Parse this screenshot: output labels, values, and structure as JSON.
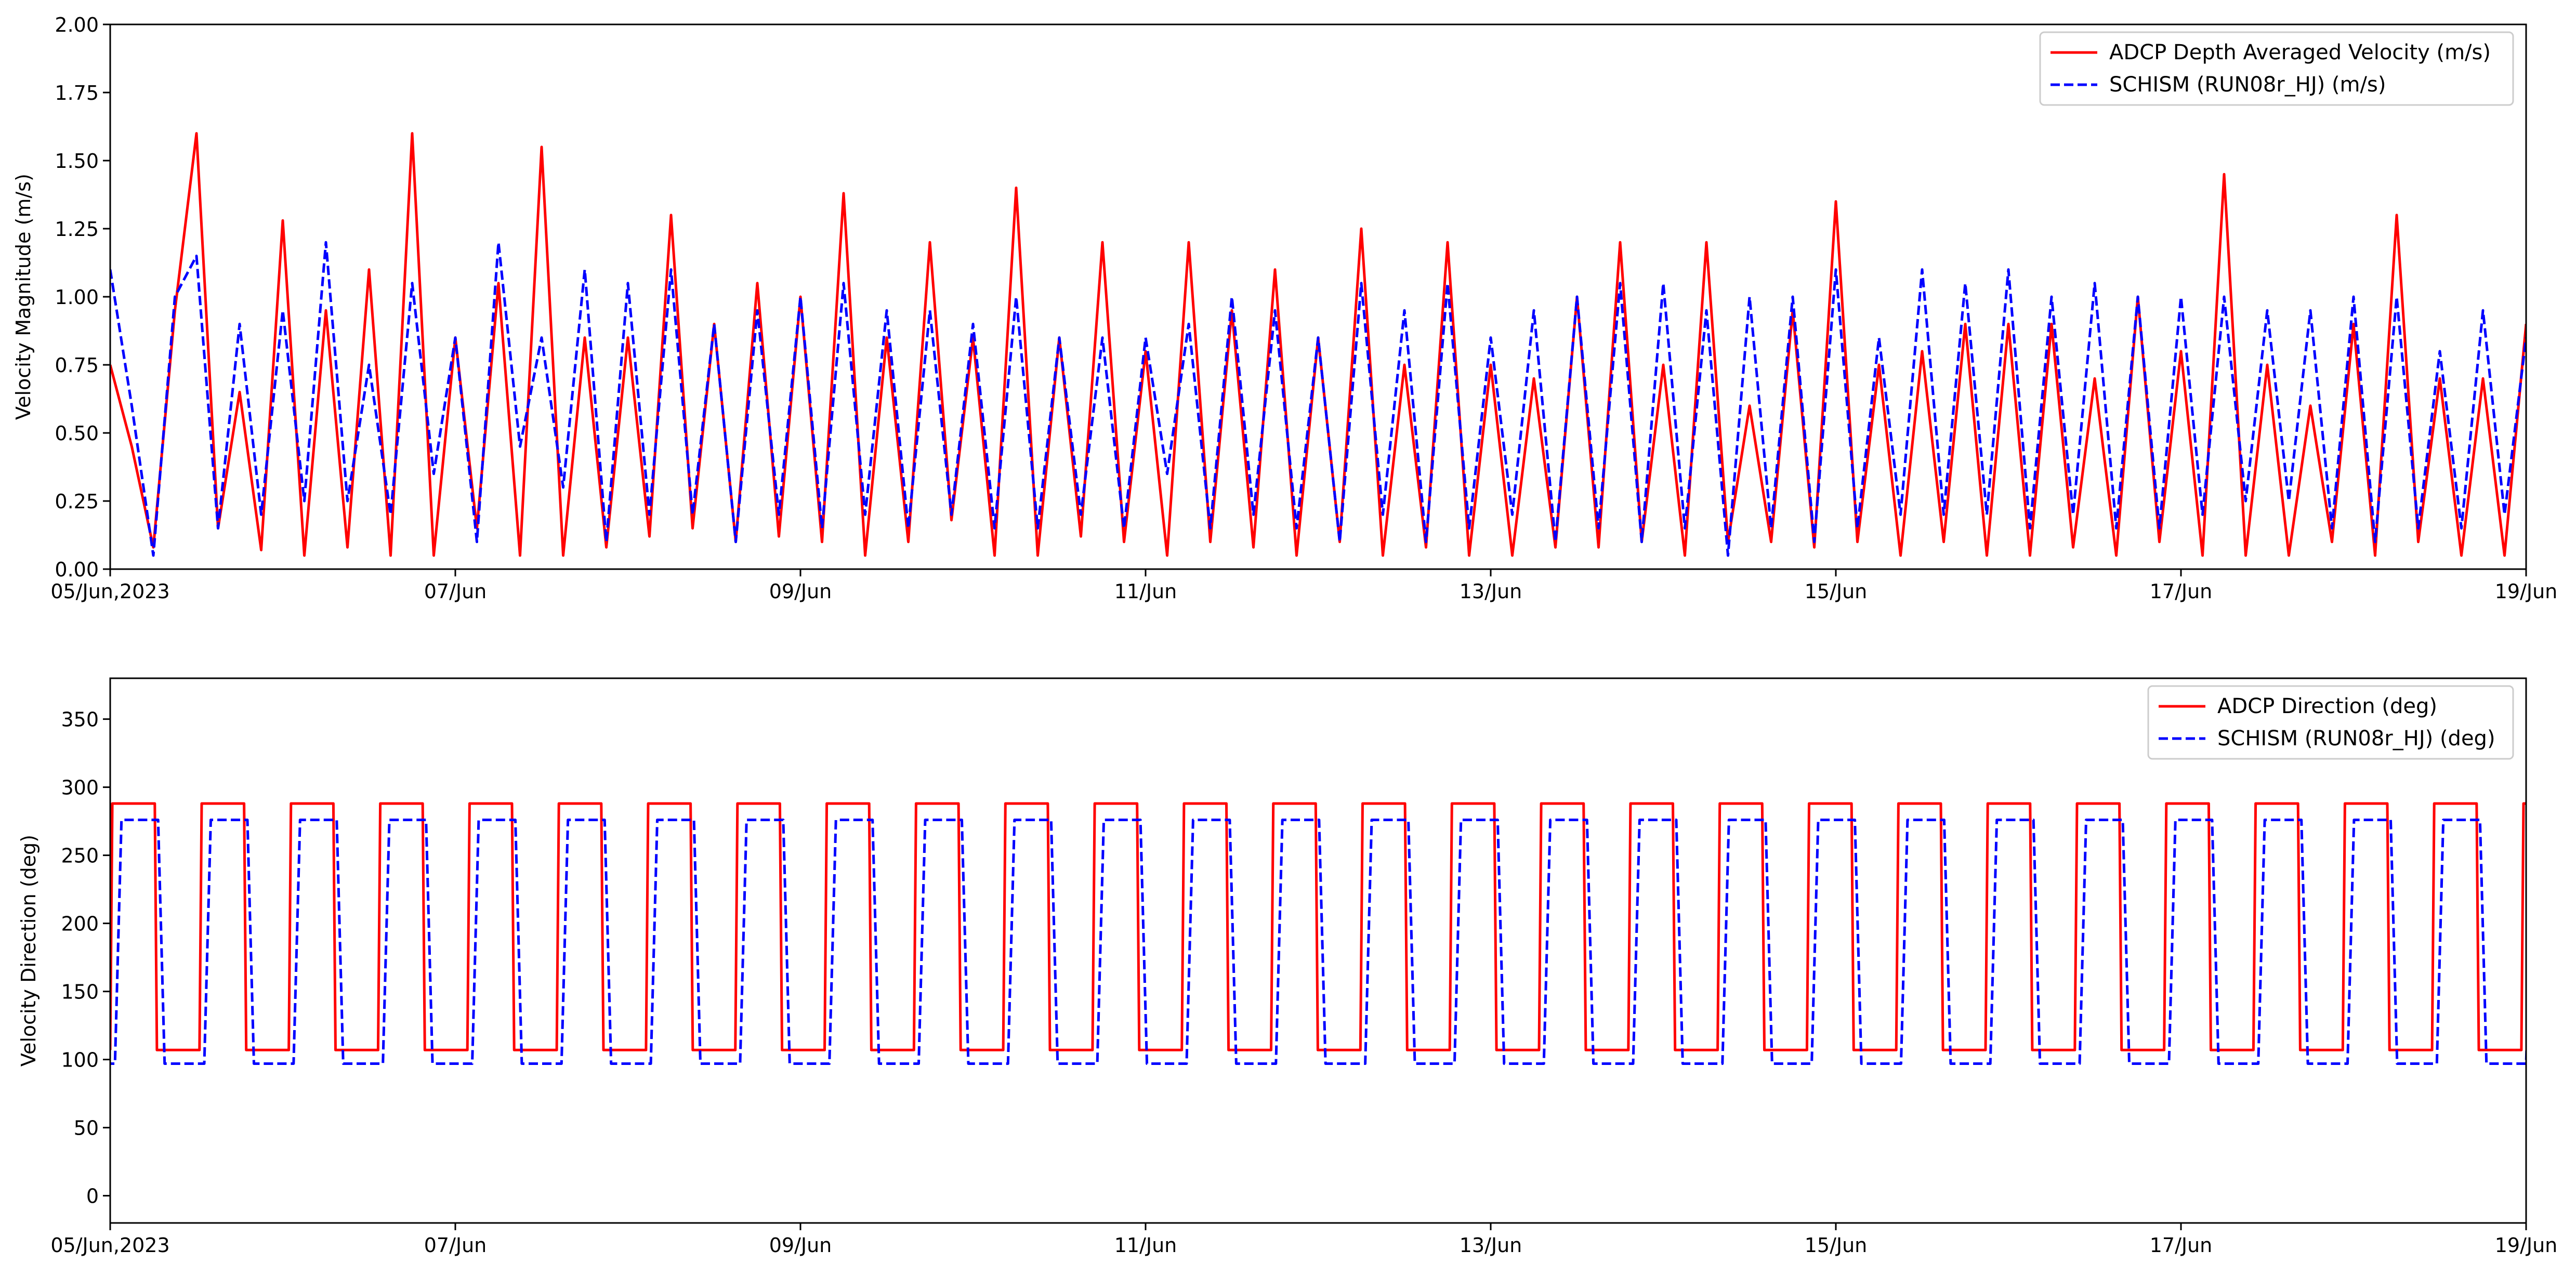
{
  "chart_data": [
    {
      "type": "line",
      "ylabel": "Velocity Magnitude (m/s)",
      "xlabel": "",
      "x_range": [
        "2023-06-05",
        "2023-06-19"
      ],
      "ylim": [
        0.0,
        2.0
      ],
      "yticks": [
        "0.00",
        "0.25",
        "0.50",
        "0.75",
        "1.00",
        "1.25",
        "1.50",
        "1.75",
        "2.00"
      ],
      "xtick_labels": [
        "05/Jun,2023",
        "07/Jun",
        "09/Jun",
        "11/Jun",
        "13/Jun",
        "15/Jun",
        "17/Jun",
        "19/Jun"
      ],
      "xtick_dates": [
        "2023-06-05",
        "2023-06-07",
        "2023-06-09",
        "2023-06-11",
        "2023-06-13",
        "2023-06-15",
        "2023-06-17",
        "2023-06-19"
      ],
      "grid": false,
      "legend_position": "top-right",
      "series": [
        {
          "name": "ADCP Depth Averaged Velocity (m/s)",
          "color": "#ff0000",
          "style": "solid",
          "x": [
            "2023-06-05 00:00",
            "2023-06-05 03:00",
            "2023-06-05 06:00",
            "2023-06-05 09:00",
            "2023-06-05 12:00",
            "2023-06-05 15:00",
            "2023-06-05 18:00",
            "2023-06-05 21:00",
            "2023-06-06 00:00",
            "2023-06-06 03:00",
            "2023-06-06 06:00",
            "2023-06-06 09:00",
            "2023-06-06 12:00",
            "2023-06-06 15:00",
            "2023-06-06 18:00",
            "2023-06-06 21:00",
            "2023-06-07 00:00",
            "2023-06-07 03:00",
            "2023-06-07 06:00",
            "2023-06-07 09:00",
            "2023-06-07 12:00",
            "2023-06-07 15:00",
            "2023-06-07 18:00",
            "2023-06-07 21:00",
            "2023-06-08 00:00",
            "2023-06-08 03:00",
            "2023-06-08 06:00",
            "2023-06-08 09:00",
            "2023-06-08 12:00",
            "2023-06-08 15:00",
            "2023-06-08 18:00",
            "2023-06-08 21:00",
            "2023-06-09 00:00",
            "2023-06-09 03:00",
            "2023-06-09 06:00",
            "2023-06-09 09:00",
            "2023-06-09 12:00",
            "2023-06-09 15:00",
            "2023-06-09 18:00",
            "2023-06-09 21:00",
            "2023-06-10 00:00",
            "2023-06-10 03:00",
            "2023-06-10 06:00",
            "2023-06-10 09:00",
            "2023-06-10 12:00",
            "2023-06-10 15:00",
            "2023-06-10 18:00",
            "2023-06-10 21:00",
            "2023-06-11 00:00",
            "2023-06-11 03:00",
            "2023-06-11 06:00",
            "2023-06-11 09:00",
            "2023-06-11 12:00",
            "2023-06-11 15:00",
            "2023-06-11 18:00",
            "2023-06-11 21:00",
            "2023-06-12 00:00",
            "2023-06-12 03:00",
            "2023-06-12 06:00",
            "2023-06-12 09:00",
            "2023-06-12 12:00",
            "2023-06-12 15:00",
            "2023-06-12 18:00",
            "2023-06-12 21:00",
            "2023-06-13 00:00",
            "2023-06-13 03:00",
            "2023-06-13 06:00",
            "2023-06-13 09:00",
            "2023-06-13 12:00",
            "2023-06-13 15:00",
            "2023-06-13 18:00",
            "2023-06-13 21:00",
            "2023-06-14 00:00",
            "2023-06-14 03:00",
            "2023-06-14 06:00",
            "2023-06-14 09:00",
            "2023-06-14 12:00",
            "2023-06-14 15:00",
            "2023-06-14 18:00",
            "2023-06-14 21:00",
            "2023-06-15 00:00",
            "2023-06-15 03:00",
            "2023-06-15 06:00",
            "2023-06-15 09:00",
            "2023-06-15 12:00",
            "2023-06-15 15:00",
            "2023-06-15 18:00",
            "2023-06-15 21:00",
            "2023-06-16 00:00",
            "2023-06-16 03:00",
            "2023-06-16 06:00",
            "2023-06-16 09:00",
            "2023-06-16 12:00",
            "2023-06-16 15:00",
            "2023-06-16 18:00",
            "2023-06-16 21:00",
            "2023-06-17 00:00",
            "2023-06-17 03:00",
            "2023-06-17 06:00",
            "2023-06-17 09:00",
            "2023-06-17 12:00",
            "2023-06-17 15:00",
            "2023-06-17 18:00",
            "2023-06-17 21:00",
            "2023-06-18 00:00",
            "2023-06-18 03:00",
            "2023-06-18 06:00",
            "2023-06-18 09:00",
            "2023-06-18 12:00",
            "2023-06-18 15:00",
            "2023-06-18 18:00",
            "2023-06-18 21:00",
            "2023-06-19 00:00"
          ],
          "y": [
            0.75,
            0.45,
            0.08,
            0.95,
            1.6,
            0.15,
            0.65,
            0.07,
            1.28,
            0.05,
            0.95,
            0.08,
            1.1,
            0.05,
            1.6,
            0.05,
            0.85,
            0.15,
            1.05,
            0.05,
            1.55,
            0.05,
            0.85,
            0.08,
            0.85,
            0.12,
            1.3,
            0.15,
            0.9,
            0.1,
            1.05,
            0.12,
            1.0,
            0.1,
            1.38,
            0.05,
            0.85,
            0.1,
            1.2,
            0.18,
            0.85,
            0.05,
            1.4,
            0.05,
            0.85,
            0.12,
            1.2,
            0.1,
            0.8,
            0.05,
            1.2,
            0.1,
            0.95,
            0.08,
            1.1,
            0.05,
            0.85,
            0.1,
            1.25,
            0.05,
            0.75,
            0.08,
            1.2,
            0.05,
            0.75,
            0.05,
            0.7,
            0.08,
            1.0,
            0.08,
            1.2,
            0.1,
            0.75,
            0.05,
            1.2,
            0.1,
            0.6,
            0.1,
            0.95,
            0.08,
            1.35,
            0.1,
            0.75,
            0.05,
            0.8,
            0.1,
            0.9,
            0.05,
            0.9,
            0.05,
            0.9,
            0.08,
            0.7,
            0.05,
            1.0,
            0.1,
            0.8,
            0.05,
            1.45,
            0.05,
            0.75,
            0.05,
            0.6,
            0.1,
            0.9,
            0.05,
            1.3,
            0.1,
            0.7,
            0.05,
            0.7,
            0.05,
            0.9
          ]
        },
        {
          "name": "SCHISM (RUN08r_HJ) (m/s)",
          "color": "#0000ff",
          "style": "dashed",
          "x": [
            "2023-06-05 00:00",
            "2023-06-05 03:00",
            "2023-06-05 06:00",
            "2023-06-05 09:00",
            "2023-06-05 12:00",
            "2023-06-05 15:00",
            "2023-06-05 18:00",
            "2023-06-05 21:00",
            "2023-06-06 00:00",
            "2023-06-06 03:00",
            "2023-06-06 06:00",
            "2023-06-06 09:00",
            "2023-06-06 12:00",
            "2023-06-06 15:00",
            "2023-06-06 18:00",
            "2023-06-06 21:00",
            "2023-06-07 00:00",
            "2023-06-07 03:00",
            "2023-06-07 06:00",
            "2023-06-07 09:00",
            "2023-06-07 12:00",
            "2023-06-07 15:00",
            "2023-06-07 18:00",
            "2023-06-07 21:00",
            "2023-06-08 00:00",
            "2023-06-08 03:00",
            "2023-06-08 06:00",
            "2023-06-08 09:00",
            "2023-06-08 12:00",
            "2023-06-08 15:00",
            "2023-06-08 18:00",
            "2023-06-08 21:00",
            "2023-06-09 00:00",
            "2023-06-09 03:00",
            "2023-06-09 06:00",
            "2023-06-09 09:00",
            "2023-06-09 12:00",
            "2023-06-09 15:00",
            "2023-06-09 18:00",
            "2023-06-09 21:00",
            "2023-06-10 00:00",
            "2023-06-10 03:00",
            "2023-06-10 06:00",
            "2023-06-10 09:00",
            "2023-06-10 12:00",
            "2023-06-10 15:00",
            "2023-06-10 18:00",
            "2023-06-10 21:00",
            "2023-06-11 00:00",
            "2023-06-11 03:00",
            "2023-06-11 06:00",
            "2023-06-11 09:00",
            "2023-06-11 12:00",
            "2023-06-11 15:00",
            "2023-06-11 18:00",
            "2023-06-11 21:00",
            "2023-06-12 00:00",
            "2023-06-12 03:00",
            "2023-06-12 06:00",
            "2023-06-12 09:00",
            "2023-06-12 12:00",
            "2023-06-12 15:00",
            "2023-06-12 18:00",
            "2023-06-12 21:00",
            "2023-06-13 00:00",
            "2023-06-13 03:00",
            "2023-06-13 06:00",
            "2023-06-13 09:00",
            "2023-06-13 12:00",
            "2023-06-13 15:00",
            "2023-06-13 18:00",
            "2023-06-13 21:00",
            "2023-06-14 00:00",
            "2023-06-14 03:00",
            "2023-06-14 06:00",
            "2023-06-14 09:00",
            "2023-06-14 12:00",
            "2023-06-14 15:00",
            "2023-06-14 18:00",
            "2023-06-14 21:00",
            "2023-06-15 00:00",
            "2023-06-15 03:00",
            "2023-06-15 06:00",
            "2023-06-15 09:00",
            "2023-06-15 12:00",
            "2023-06-15 15:00",
            "2023-06-15 18:00",
            "2023-06-15 21:00",
            "2023-06-16 00:00",
            "2023-06-16 03:00",
            "2023-06-16 06:00",
            "2023-06-16 09:00",
            "2023-06-16 12:00",
            "2023-06-16 15:00",
            "2023-06-16 18:00",
            "2023-06-16 21:00",
            "2023-06-17 00:00",
            "2023-06-17 03:00",
            "2023-06-17 06:00",
            "2023-06-17 09:00",
            "2023-06-17 12:00",
            "2023-06-17 15:00",
            "2023-06-17 18:00",
            "2023-06-17 21:00",
            "2023-06-18 00:00",
            "2023-06-18 03:00",
            "2023-06-18 06:00",
            "2023-06-18 09:00",
            "2023-06-18 12:00",
            "2023-06-18 15:00",
            "2023-06-18 18:00",
            "2023-06-18 21:00",
            "2023-06-19 00:00"
          ],
          "y": [
            1.1,
            0.6,
            0.05,
            1.0,
            1.15,
            0.15,
            0.9,
            0.2,
            0.95,
            0.25,
            1.2,
            0.25,
            0.75,
            0.2,
            1.05,
            0.35,
            0.85,
            0.1,
            1.2,
            0.45,
            0.85,
            0.3,
            1.1,
            0.1,
            1.05,
            0.2,
            1.1,
            0.2,
            0.9,
            0.1,
            0.95,
            0.2,
            1.0,
            0.15,
            1.05,
            0.2,
            0.95,
            0.15,
            0.95,
            0.2,
            0.9,
            0.15,
            1.0,
            0.15,
            0.85,
            0.2,
            0.85,
            0.15,
            0.85,
            0.35,
            0.9,
            0.15,
            1.0,
            0.2,
            0.95,
            0.15,
            0.85,
            0.1,
            1.05,
            0.2,
            0.95,
            0.1,
            1.05,
            0.15,
            0.85,
            0.2,
            0.95,
            0.1,
            1.0,
            0.15,
            1.05,
            0.1,
            1.05,
            0.15,
            0.95,
            0.05,
            1.0,
            0.15,
            1.0,
            0.1,
            1.1,
            0.15,
            0.85,
            0.2,
            1.1,
            0.2,
            1.05,
            0.2,
            1.1,
            0.15,
            1.0,
            0.2,
            1.05,
            0.15,
            1.0,
            0.15,
            1.0,
            0.2,
            1.0,
            0.25,
            0.95,
            0.25,
            0.95,
            0.15,
            1.0,
            0.1,
            1.0,
            0.15,
            0.8,
            0.15,
            0.95,
            0.2,
            0.85
          ]
        }
      ]
    },
    {
      "type": "line",
      "ylabel": "Velocity Direction (deg)",
      "xlabel": "",
      "x_range": [
        "2023-06-05",
        "2023-06-19"
      ],
      "ylim": [
        -20,
        380
      ],
      "yticks": [
        "0",
        "50",
        "100",
        "150",
        "200",
        "250",
        "300",
        "350"
      ],
      "xtick_labels": [
        "05/Jun,2023",
        "07/Jun",
        "09/Jun",
        "11/Jun",
        "13/Jun",
        "15/Jun",
        "17/Jun",
        "19/Jun"
      ],
      "xtick_dates": [
        "2023-06-05",
        "2023-06-07",
        "2023-06-09",
        "2023-06-11",
        "2023-06-13",
        "2023-06-15",
        "2023-06-17",
        "2023-06-19"
      ],
      "grid": false,
      "legend_position": "top-right",
      "series": [
        {
          "name": "ADCP Direction (deg)",
          "color": "#ff0000",
          "style": "solid",
          "pattern": {
            "period_hours": 12.42,
            "first_rise": "2023-06-05 00:00",
            "high_value": 288,
            "low_value": 107,
            "high_duration_hours": 6.2,
            "transition_hours": 0.3
          }
        },
        {
          "name": "SCHISM (RUN08r_HJ) (deg)",
          "color": "#0000ff",
          "style": "dashed",
          "pattern": {
            "period_hours": 12.42,
            "first_rise": "2023-06-05 00:40",
            "high_value": 276,
            "low_value": 97,
            "high_duration_hours": 6.0,
            "transition_hours": 0.9
          }
        }
      ]
    }
  ]
}
